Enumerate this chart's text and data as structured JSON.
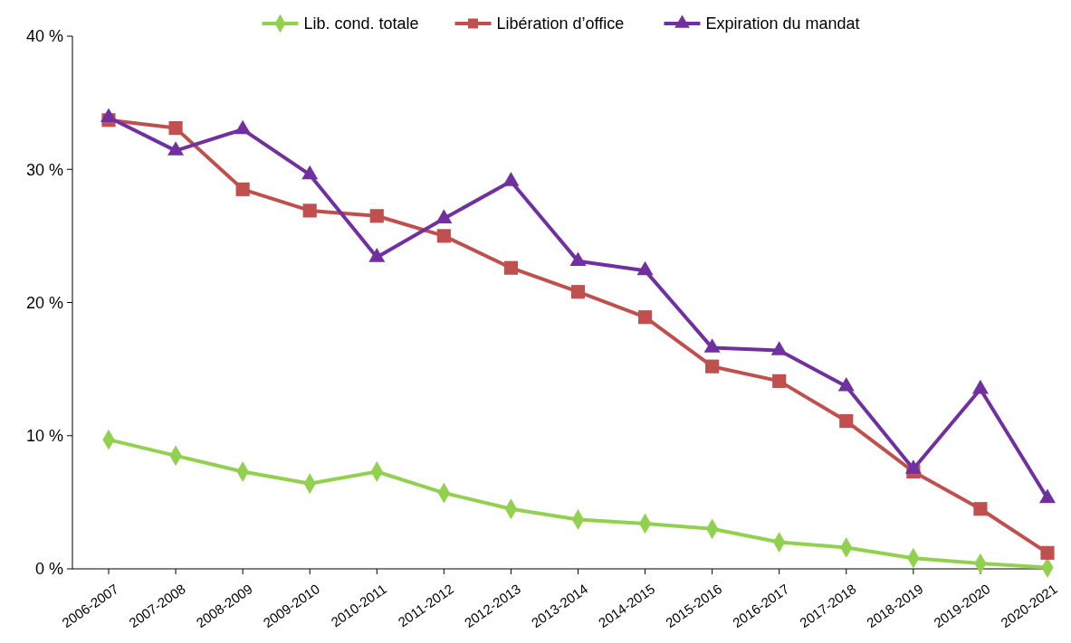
{
  "chart_data": {
    "type": "line",
    "categories": [
      "2006-2007",
      "2007-2008",
      "2008-2009",
      "2009-2010",
      "2010-2011",
      "2011-2012",
      "2012-2013",
      "2013-2014",
      "2014-2015",
      "2015-2016",
      "2016-2017",
      "2017-2018",
      "2018-2019",
      "2019-2020",
      "2020-2021"
    ],
    "series": [
      {
        "name": "Lib. cond. totale",
        "color": "#92d050",
        "marker": "diamond",
        "values": [
          9.7,
          8.5,
          7.3,
          6.4,
          7.3,
          5.7,
          4.5,
          3.7,
          3.4,
          3.0,
          2.0,
          1.6,
          0.8,
          0.4,
          0.1
        ]
      },
      {
        "name": "Libération d’office",
        "color": "#c0504d",
        "marker": "square",
        "values": [
          33.7,
          33.1,
          28.5,
          26.9,
          26.5,
          25.0,
          22.6,
          20.8,
          18.9,
          15.2,
          14.1,
          11.1,
          7.3,
          4.5,
          1.2
        ]
      },
      {
        "name": "Expiration du mandat",
        "color": "#7030a0",
        "marker": "triangle",
        "values": [
          33.9,
          31.4,
          33.0,
          29.6,
          23.4,
          26.3,
          29.1,
          23.1,
          22.4,
          16.6,
          16.4,
          13.7,
          7.5,
          13.5,
          5.3
        ]
      }
    ],
    "ylim": [
      0,
      40
    ],
    "yticks": [
      {
        "value": 0,
        "label": "0 %"
      },
      {
        "value": 10,
        "label": "10 %"
      },
      {
        "value": 20,
        "label": "20 %"
      },
      {
        "value": 30,
        "label": "30 %"
      },
      {
        "value": 40,
        "label": "40 %"
      }
    ],
    "grid": false,
    "legend": "top",
    "line_style": "solid"
  }
}
